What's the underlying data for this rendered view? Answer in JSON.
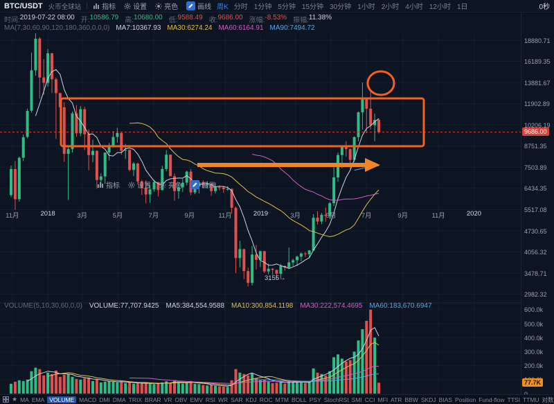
{
  "toolbar": {
    "symbol": "BTC/USDT",
    "exchange": "火币全球站",
    "tools": [
      {
        "id": "indicator",
        "label": "指标"
      },
      {
        "id": "settings",
        "label": "设置"
      },
      {
        "id": "theme",
        "label": "亮色"
      },
      {
        "id": "draw",
        "label": "画线",
        "active": true
      }
    ],
    "period_selected": "周K",
    "timeframes": [
      "分时",
      "1分钟",
      "5分钟",
      "15分钟",
      "30分钟",
      "1小时",
      "2小时",
      "4小时",
      "12小时",
      "1日"
    ],
    "countdown": "0秒"
  },
  "info_row": {
    "time_label": "时间:",
    "time": "2019-07-22 08:00",
    "open_label": "开:",
    "open": "10586.79",
    "high_label": "高:",
    "high": "10680.00",
    "low_label": "低:",
    "low": "9588.49",
    "close_label": "收:",
    "close": "9686.00",
    "change_label": "涨幅:",
    "change": "-8.53%",
    "amplitude_label": "振幅:",
    "amplitude": "11.38%"
  },
  "ma_row": {
    "params": "MA(7,30,60,90,120,180,360,0,0,0)",
    "ma7_label": "MA7:",
    "ma7": "10367.93",
    "ma30_label": "MA30:",
    "ma30": "6274.24",
    "ma60_label": "MA60:",
    "ma60": "6164.91",
    "ma90_label": "MA90:",
    "ma90": "7494.72"
  },
  "volume_row": {
    "params": "VOLUME(5,10,30,60,0,0)",
    "volume_label": "VOLUME:",
    "volume": "77,707.9425",
    "ma5_label": "MA5:",
    "ma5": "384,554.9588",
    "ma10_label": "MA10:",
    "ma10": "300,854.1198",
    "ma30_label": "MA30:",
    "ma30": "222,574.4695",
    "ma60_label": "MA60:",
    "ma60": "183,670.6947"
  },
  "bottom_bar": {
    "items": [
      "MA",
      "EMA",
      "VOLUME",
      "MACD",
      "DMI",
      "DMA",
      "TRIX",
      "BRAR",
      "VR",
      "OBV",
      "EMV",
      "RSI",
      "WR",
      "SAR",
      "KDJ",
      "ROC",
      "MTM",
      "BOLL",
      "PSY",
      "StochRSI",
      "SMI",
      "CCI",
      "MFI",
      "ATR",
      "BBW",
      "SKDJ",
      "BIAS",
      "Position",
      "Fund-flow",
      "TTSI",
      "TTMU"
    ],
    "selected": "VOLUME",
    "log_label": "对数"
  },
  "colors": {
    "up": "#2ebd85",
    "down": "#e0504f",
    "ma7": "#ccd5e2",
    "ma30": "#e4bf4b",
    "ma60": "#d25ec4",
    "ma90": "#55a8e0",
    "accent_blue": "#3b82d8",
    "annotation": "#f4611f",
    "arrow": "#f08428",
    "last_price_bg": "#d8443d",
    "volume_badge_bg": "#f2901d"
  },
  "chart_data": {
    "type": "candlestick",
    "symbol": "BTC/USDT",
    "interval": "周K",
    "price_scale": "log",
    "ylim": [
      2982.32,
      18880.71
    ],
    "price_axis": {
      "labels": [
        "18880.71",
        "16189.35",
        "13881.67",
        "11902.89",
        "10206.19",
        "8751.35",
        "7503.89",
        "6434.35",
        "5517.08",
        "4730.65",
        "4056.32",
        "3478.71",
        "2982.32"
      ],
      "last_price_label": "9686.00",
      "last_price": 9686.0
    },
    "volume_axis": {
      "labels": [
        "600.0k",
        "500.0k",
        "400.0k",
        "300.0k",
        "200.0k",
        "100.0k",
        "0"
      ],
      "current_badge": "77.7K"
    },
    "time_axis": {
      "labels": [
        {
          "text": "11月",
          "week": 0.3
        },
        {
          "text": "2018",
          "week": 9.0,
          "year": true
        },
        {
          "text": "3月",
          "week": 17.4
        },
        {
          "text": "5月",
          "week": 26.1
        },
        {
          "text": "7月",
          "week": 34.9
        },
        {
          "text": "9月",
          "week": 43.7
        },
        {
          "text": "11月",
          "week": 52.4
        },
        {
          "text": "2019",
          "week": 61.1,
          "year": true
        },
        {
          "text": "3月",
          "week": 69.6
        },
        {
          "text": "5月",
          "week": 78.3
        },
        {
          "text": "7月",
          "week": 87.0
        },
        {
          "text": "9月",
          "week": 95.9
        },
        {
          "text": "11月",
          "week": 104.6
        },
        {
          "text": "2020",
          "week": 113.3,
          "year": true
        }
      ]
    },
    "ma_periods": [
      7,
      30,
      60,
      90
    ],
    "volume_ma_periods": [
      5,
      10,
      30,
      60
    ],
    "volume_unit": "k",
    "candles": [
      [
        6130,
        7598,
        6039,
        7407,
        70
      ],
      [
        7404,
        7854,
        5507,
        5950,
        85
      ],
      [
        5950,
        8101,
        5844,
        8038,
        95
      ],
      [
        8039,
        9522,
        7851,
        9330,
        90
      ],
      [
        9352,
        11488,
        9265,
        11296,
        100
      ],
      [
        11315,
        17270,
        11159,
        15168,
        160
      ],
      [
        15168,
        19891,
        14595,
        19086,
        185
      ],
      [
        19106,
        19300,
        12350,
        14396,
        175
      ],
      [
        14408,
        16461,
        12700,
        13860,
        130
      ],
      [
        13850,
        17712,
        13467,
        17172,
        150
      ],
      [
        17178,
        17190,
        12875,
        14214,
        140
      ],
      [
        14207,
        14390,
        9222,
        12853,
        165
      ],
      [
        12853,
        12900,
        9800,
        11600,
        120
      ],
      [
        11600,
        12040,
        7810,
        8270,
        135
      ],
      [
        8270,
        8700,
        5920,
        8560,
        140
      ],
      [
        8560,
        11250,
        8350,
        11100,
        120
      ],
      [
        11100,
        11790,
        9360,
        9600,
        105
      ],
      [
        9600,
        11700,
        9400,
        11440,
        100
      ],
      [
        11440,
        11660,
        8500,
        9540,
        110
      ],
      [
        9540,
        9890,
        7335,
        8200,
        115
      ],
      [
        8200,
        9170,
        7780,
        8450,
        90
      ],
      [
        8450,
        8490,
        6425,
        6840,
        100
      ],
      [
        6840,
        7180,
        6530,
        7020,
        80
      ],
      [
        7020,
        8230,
        6650,
        8350,
        85
      ],
      [
        8350,
        8950,
        7880,
        8790,
        90
      ],
      [
        8790,
        9760,
        8650,
        9350,
        85
      ],
      [
        9350,
        9990,
        8970,
        9620,
        80
      ],
      [
        9620,
        9690,
        8220,
        8460,
        85
      ],
      [
        8460,
        8890,
        7970,
        8510,
        75
      ],
      [
        8510,
        8550,
        7280,
        7360,
        80
      ],
      [
        7360,
        7790,
        7040,
        7710,
        70
      ],
      [
        7710,
        7760,
        6640,
        6770,
        75
      ],
      [
        6770,
        6840,
        6135,
        6450,
        72
      ],
      [
        6450,
        6820,
        5770,
        6160,
        78
      ],
      [
        6160,
        6600,
        5800,
        6390,
        70
      ],
      [
        6390,
        6850,
        6290,
        6740,
        68
      ],
      [
        6740,
        6750,
        6070,
        6360,
        72
      ],
      [
        6360,
        7590,
        6330,
        7410,
        80
      ],
      [
        7410,
        8500,
        7290,
        8220,
        88
      ],
      [
        8220,
        8240,
        7280,
        7030,
        75
      ],
      [
        7030,
        7170,
        5880,
        6310,
        95
      ],
      [
        6310,
        6620,
        5970,
        6490,
        80
      ],
      [
        6490,
        6890,
        6270,
        6710,
        72
      ],
      [
        6710,
        7320,
        6580,
        7270,
        78
      ],
      [
        7270,
        7410,
        6130,
        6250,
        90
      ],
      [
        6250,
        6590,
        6170,
        6520,
        70
      ],
      [
        6520,
        6820,
        6200,
        6730,
        68
      ],
      [
        6730,
        6830,
        6430,
        6600,
        62
      ],
      [
        6600,
        6790,
        6430,
        6640,
        58
      ],
      [
        6640,
        6760,
        6100,
        6310,
        62
      ],
      [
        6310,
        6720,
        6200,
        6490,
        56
      ],
      [
        6490,
        6550,
        6350,
        6480,
        52
      ],
      [
        6480,
        6560,
        6230,
        6400,
        50
      ],
      [
        6400,
        6540,
        6330,
        6410,
        48
      ],
      [
        6410,
        6440,
        5360,
        5590,
        95
      ],
      [
        5590,
        5640,
        3475,
        3880,
        175
      ],
      [
        3880,
        4400,
        3630,
        4140,
        150
      ],
      [
        4140,
        4150,
        3330,
        3530,
        140
      ],
      [
        3530,
        3620,
        3155,
        3240,
        130
      ],
      [
        3240,
        4240,
        3180,
        3980,
        145
      ],
      [
        3980,
        4270,
        3570,
        3830,
        110
      ],
      [
        3830,
        4090,
        3640,
        4080,
        95
      ],
      [
        4080,
        4090,
        3480,
        3520,
        100
      ],
      [
        3520,
        3730,
        3450,
        3590,
        85
      ],
      [
        3590,
        3610,
        3430,
        3560,
        75
      ],
      [
        3560,
        3570,
        3330,
        3460,
        78
      ],
      [
        3460,
        3720,
        3350,
        3660,
        82
      ],
      [
        3660,
        3680,
        3540,
        3620,
        70
      ],
      [
        3620,
        4190,
        3610,
        3760,
        95
      ],
      [
        3760,
        3860,
        3660,
        3820,
        80
      ],
      [
        3820,
        3950,
        3660,
        3920,
        85
      ],
      [
        3920,
        4040,
        3790,
        4010,
        80
      ],
      [
        4010,
        4060,
        3910,
        3990,
        75
      ],
      [
        3990,
        4110,
        3880,
        4100,
        85
      ],
      [
        4100,
        5340,
        4080,
        5200,
        180
      ],
      [
        5200,
        5450,
        4950,
        5060,
        150
      ],
      [
        5060,
        5390,
        4970,
        5310,
        140
      ],
      [
        5310,
        5600,
        5050,
        5270,
        130
      ],
      [
        5270,
        5840,
        5150,
        5780,
        160
      ],
      [
        5780,
        7580,
        5660,
        6970,
        260
      ],
      [
        6970,
        8350,
        6750,
        8200,
        280
      ],
      [
        8200,
        8780,
        7440,
        8720,
        250
      ],
      [
        8720,
        9070,
        8100,
        8560,
        230
      ],
      [
        8560,
        8600,
        7420,
        7920,
        240
      ],
      [
        7920,
        9390,
        7800,
        9340,
        300
      ],
      [
        9340,
        11240,
        9050,
        11180,
        380
      ],
      [
        11180,
        13880,
        9870,
        12380,
        460
      ],
      [
        12380,
        12430,
        9620,
        11480,
        520
      ],
      [
        11480,
        13130,
        9870,
        10180,
        600
      ],
      [
        10180,
        11090,
        9070,
        10580,
        400
      ],
      [
        10586,
        10680,
        9588,
        9686,
        78
      ]
    ],
    "annotations": {
      "low_label": "3155→",
      "box": "hand-drawn resistance zone ~8750-11900 from Jan 2018 to Jul 2019",
      "circle": "hand-drawn circle on July 2019 rejection highs",
      "arrow": "hand-drawn horizontal arrow at ~7500 pointing right to breakout"
    }
  }
}
